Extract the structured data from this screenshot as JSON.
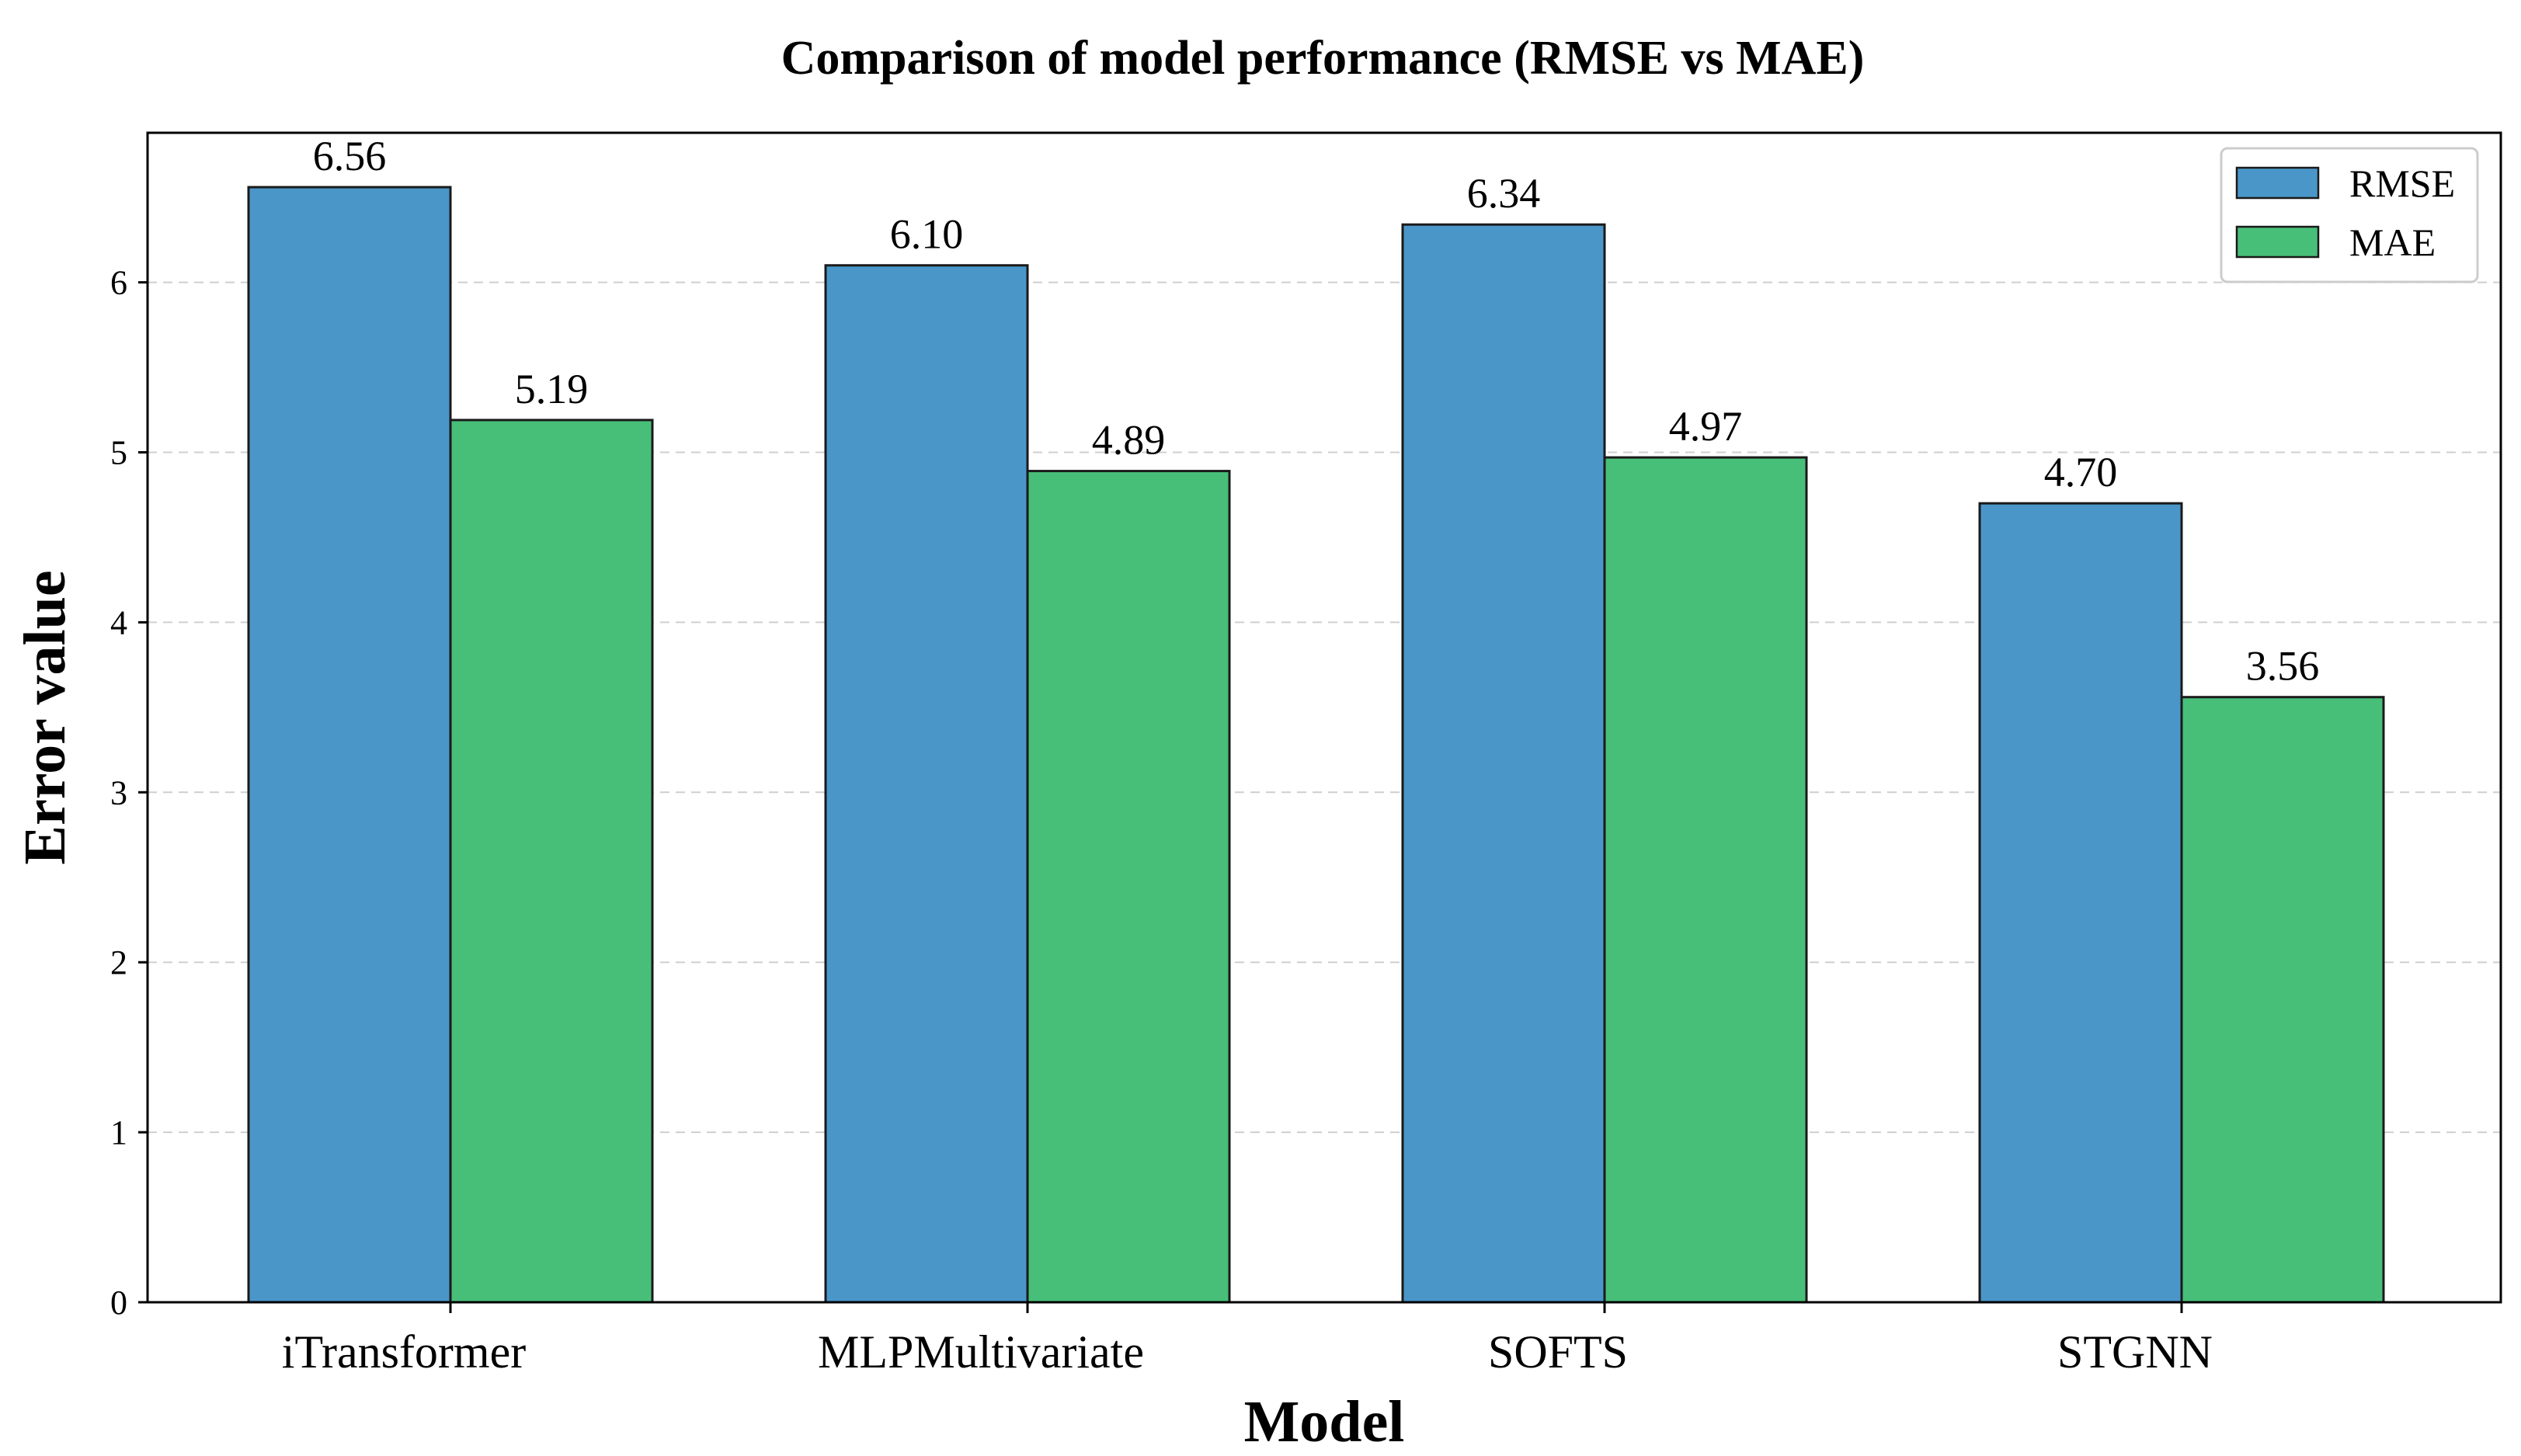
{
  "chart_data": {
    "type": "bar",
    "title": "Comparison of model performance (RMSE vs MAE)",
    "xlabel": "Model",
    "ylabel": "Error value",
    "categories": [
      "iTransformer",
      "MLPMultivariate",
      "SOFTS",
      "STGNN"
    ],
    "series": [
      {
        "name": "RMSE",
        "values": [
          6.56,
          6.1,
          6.34,
          4.7
        ],
        "color": "#4a96c9",
        "labels": [
          "6.56",
          "6.10",
          "6.34",
          "4.70"
        ]
      },
      {
        "name": "MAE",
        "values": [
          5.19,
          4.89,
          4.97,
          3.56
        ],
        "color": "#48bf79",
        "labels": [
          "5.19",
          "4.89",
          "4.97",
          "3.56"
        ]
      }
    ],
    "yticks": [
      0,
      1,
      2,
      3,
      4,
      5,
      6
    ],
    "ytick_labels": [
      "0",
      "1",
      "2",
      "3",
      "4",
      "5",
      "6"
    ],
    "ylim": [
      0,
      6.88
    ],
    "grid": true,
    "legend_position": "top-right"
  }
}
